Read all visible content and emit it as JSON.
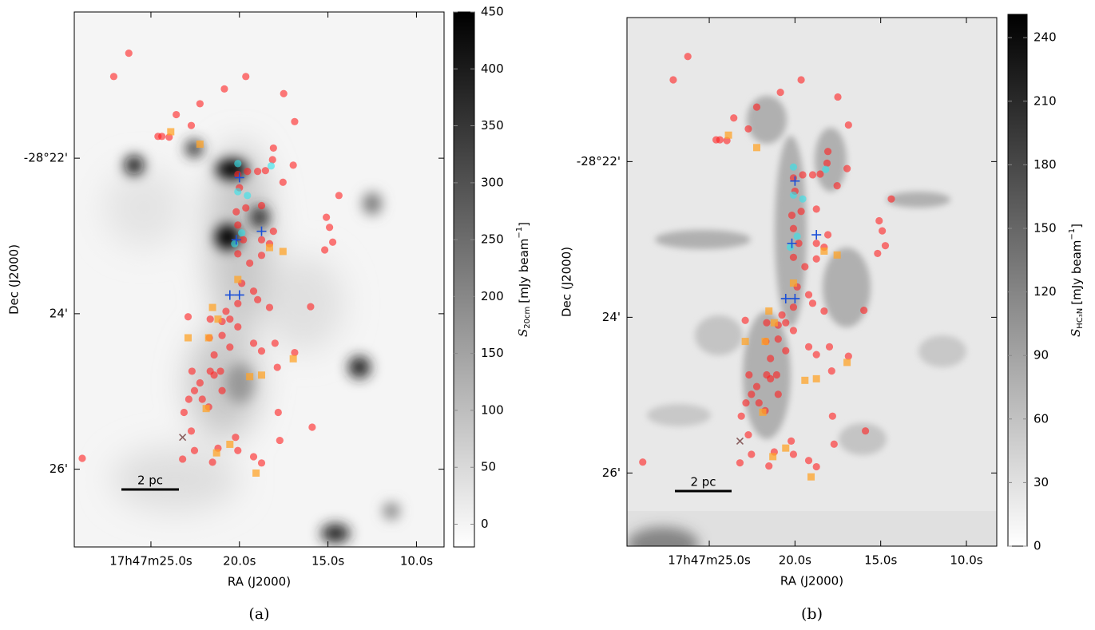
{
  "figure": {
    "panels": [
      {
        "caption": "(a)",
        "x_label": "RA (J2000)",
        "y_label": "Dec (J2000)",
        "xlim": [
          29.33,
          8.44
        ],
        "ylim": [
          -20.12,
          -27.0
        ],
        "xticks": [
          {
            "value": 25,
            "label": "17h47m25.0s"
          },
          {
            "value": 20,
            "label": "20.0s"
          },
          {
            "value": 15,
            "label": "15.0s"
          },
          {
            "value": 10,
            "label": "10.0s"
          }
        ],
        "yticks": [
          {
            "value": -22,
            "label": "-28°22'"
          },
          {
            "value": -24,
            "label": "24'"
          },
          {
            "value": -26,
            "label": "26'"
          }
        ],
        "scale_bar": "2 pc",
        "colorbar": {
          "lim": [
            -20,
            450
          ],
          "ticks": [
            0,
            50,
            100,
            150,
            200,
            250,
            300,
            350,
            400,
            450
          ],
          "symbol": "S",
          "subscript": "20cm",
          "unit": "[mJy beam",
          "unit_exponent": "−1",
          "unit_close": "]"
        }
      },
      {
        "caption": "(b)",
        "x_label": "RA (J2000)",
        "y_label": "Dec (J2000)",
        "xlim": [
          29.8,
          8.23
        ],
        "ylim": [
          -20.15,
          -26.94
        ],
        "xticks": [
          {
            "value": 25,
            "label": "17h47m25.0s"
          },
          {
            "value": 20,
            "label": "20.0s"
          },
          {
            "value": 15,
            "label": "15.0s"
          },
          {
            "value": 10,
            "label": "10.0s"
          }
        ],
        "yticks": [
          {
            "value": -22,
            "label": "-28°22'"
          },
          {
            "value": -24,
            "label": "24'"
          },
          {
            "value": -26,
            "label": "26'"
          }
        ],
        "scale_bar": "2 pc",
        "colorbar": {
          "lim": [
            0,
            251
          ],
          "ticks": [
            0,
            30,
            60,
            90,
            120,
            150,
            180,
            210,
            240
          ],
          "symbol": "S",
          "subscript": "HC₃N",
          "unit": "[mJy beam",
          "unit_exponent": "−1",
          "unit_close": "]"
        }
      }
    ],
    "markers": [
      {
        "marker": "circle",
        "color": "#ff2020",
        "ra": [
          26.25,
          27.1,
          20.85,
          19.64,
          22.23,
          23.57,
          17.5,
          16.88,
          22.72,
          24.6,
          24.38,
          23.97,
          18.08,
          16.96,
          18.13,
          20.09,
          19.55,
          18.97,
          18.53,
          17.54,
          14.38,
          20.0,
          19.64,
          20.18,
          18.75,
          15.09,
          14.91,
          18.08,
          14.73,
          15.18,
          20.09,
          19.78,
          18.75,
          18.3,
          20.09,
          19.42,
          18.75,
          19.87,
          19.2,
          18.97,
          20.09,
          20.76,
          18.3,
          15.98,
          20.54,
          20.09,
          20.98,
          20.54,
          21.43,
          21.65,
          21.07,
          19.2,
          18.75,
          17.99,
          17.86,
          16.88,
          22.68,
          22.54,
          22.23,
          22.86,
          23.13,
          20.98,
          21.43,
          17.81,
          15.89,
          17.72,
          23.21,
          21.52,
          22.54,
          20.09,
          21.21,
          19.2,
          18.75,
          28.88,
          22.9,
          21.65,
          21.7,
          20.98,
          20.22,
          22.72,
          22.1,
          21.74
        ],
        "dec": [
          -20.65,
          -20.95,
          -21.11,
          -20.95,
          -21.3,
          -21.44,
          -21.17,
          -21.53,
          -21.58,
          -21.72,
          -21.72,
          -21.73,
          -21.87,
          -22.09,
          -22.02,
          -22.21,
          -22.17,
          -22.17,
          -22.16,
          -22.31,
          -22.48,
          -22.38,
          -22.64,
          -22.69,
          -22.61,
          -22.76,
          -22.89,
          -22.94,
          -23.08,
          -23.18,
          -22.86,
          -23.05,
          -23.05,
          -23.1,
          -23.23,
          -23.35,
          -23.25,
          -23.61,
          -23.71,
          -23.82,
          -23.87,
          -23.97,
          -23.92,
          -23.91,
          -24.07,
          -24.17,
          -24.28,
          -24.43,
          -24.53,
          -24.74,
          -24.74,
          -24.38,
          -24.48,
          -24.38,
          -24.69,
          -24.5,
          -24.74,
          -24.99,
          -24.89,
          -25.1,
          -25.27,
          -24.99,
          -24.79,
          -25.27,
          -25.46,
          -25.63,
          -25.87,
          -25.91,
          -25.76,
          -25.76,
          -25.73,
          -25.84,
          -25.92,
          -25.86,
          -24.04,
          -24.07,
          -24.31,
          -24.1,
          -25.59,
          -25.51,
          -25.1,
          -25.2
        ]
      },
      {
        "marker": "square",
        "color": "#ffa42a",
        "ra": [
          23.88,
          22.23,
          17.54,
          18.75,
          19.42,
          16.96,
          22.9,
          21.74,
          21.88,
          20.54,
          21.29,
          19.06,
          21.52,
          21.21,
          20.09,
          18.3
        ],
        "dec": [
          -21.66,
          -21.82,
          -23.2,
          -24.79,
          -24.81,
          -24.58,
          -24.31,
          -24.31,
          -25.22,
          -25.68,
          -25.79,
          -26.05,
          -23.92,
          -24.07,
          -23.56,
          -23.15
        ]
      },
      {
        "marker": "circle",
        "color": "#30e4ec",
        "ra": [
          20.09,
          18.21,
          19.55,
          19.87,
          20.27,
          20.09
        ],
        "dec": [
          -22.07,
          -22.1,
          -22.48,
          -22.96,
          -23.1,
          -22.43
        ]
      },
      {
        "marker": "plus",
        "color": "#1a4fd8",
        "ra": [
          20.18,
          20.0,
          20.54,
          18.75,
          20.0
        ],
        "dec": [
          -23.05,
          -22.25,
          -23.76,
          -22.94,
          -23.76
        ]
      },
      {
        "marker": "x",
        "color": "#8a6060",
        "ra": [
          23.21
        ],
        "dec": [
          -25.59
        ]
      }
    ]
  }
}
